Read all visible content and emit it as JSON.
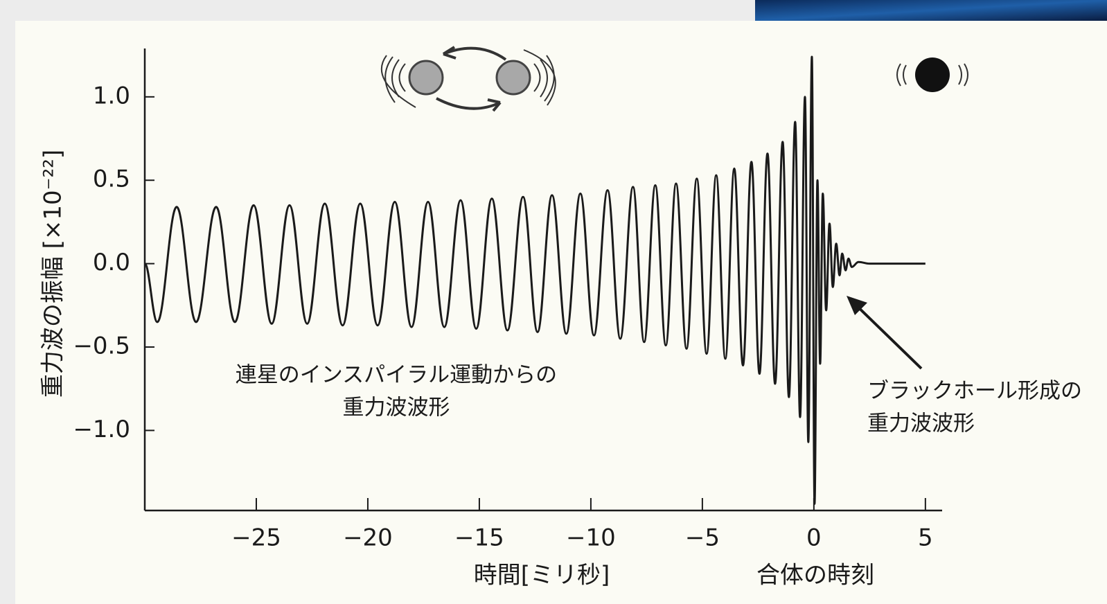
{
  "chart_data": {
    "type": "line",
    "ylabel": "重力波の振幅 [×10⁻²²]",
    "xlabel": "時間[ミリ秒]",
    "annotations": [
      "連星のインスパイラル運動からの",
      "重力波波形",
      "ブラックホール形成の",
      "重力波波形",
      "合体の時刻"
    ],
    "color": "#1a1a1a",
    "xlim": [
      -30,
      5.75
    ],
    "ylim": [
      -1.48,
      1.29
    ],
    "xticks": [
      {
        "value": -25,
        "label": "−25"
      },
      {
        "value": -20,
        "label": "−20"
      },
      {
        "value": -15,
        "label": "−15"
      },
      {
        "value": -10,
        "label": "−10"
      },
      {
        "value": -5,
        "label": "−5"
      },
      0,
      5
    ],
    "yticks": [
      {
        "value": -1,
        "label": "−1.0"
      },
      {
        "value": -0.5,
        "label": "−0.5"
      },
      {
        "value": 0,
        "label": "0.0"
      },
      0.5,
      {
        "value": 1,
        "label": "1.0"
      }
    ],
    "x": [
      -30,
      -29.44,
      -28.57,
      -27.7,
      -26.8,
      -25.96,
      -25.12,
      -24.31,
      -23.51,
      -22.72,
      -21.93,
      -21.13,
      -20.34,
      -19.56,
      -18.79,
      -18.04,
      -17.3,
      -16.57,
      -15.84,
      -15.14,
      -14.44,
      -13.74,
      -13.04,
      -12.39,
      -11.74,
      -11.1,
      -10.47,
      -9.86,
      -9.25,
      -8.68,
      -8.11,
      -7.61,
      -7.11,
      -6.64,
      -6.18,
      -5.71,
      -5.25,
      -4.81,
      -4.38,
      -3.97,
      -3.57,
      -3.18,
      -2.8,
      -2.44,
      -2.08,
      -1.74,
      -1.4,
      -1.12,
      -0.84,
      -0.62,
      -0.4,
      -0.25,
      -0.09,
      0.03,
      0.16,
      0.28,
      0.4,
      0.55,
      0.7,
      0.85,
      1.0,
      1.15,
      1.27,
      1.42,
      1.55,
      1.7,
      2.0,
      2.5,
      5.0
    ],
    "values": [
      0.0,
      -0.35,
      0.34,
      -0.35,
      0.34,
      -0.35,
      0.35,
      -0.36,
      0.35,
      -0.36,
      0.36,
      -0.37,
      0.36,
      -0.37,
      0.37,
      -0.38,
      0.37,
      -0.38,
      0.38,
      -0.39,
      0.39,
      -0.4,
      0.4,
      -0.41,
      0.41,
      -0.42,
      0.42,
      -0.43,
      0.44,
      -0.45,
      0.46,
      -0.47,
      0.47,
      -0.49,
      0.48,
      -0.51,
      0.51,
      -0.54,
      0.53,
      -0.57,
      0.57,
      -0.61,
      0.61,
      -0.66,
      0.66,
      -0.72,
      0.73,
      -0.8,
      0.85,
      -0.92,
      1.0,
      -1.07,
      1.24,
      -1.44,
      0.5,
      -0.6,
      0.42,
      -0.28,
      0.24,
      -0.14,
      0.12,
      -0.07,
      0.06,
      -0.04,
      0.03,
      -0.02,
      0.01,
      0,
      0
    ]
  }
}
